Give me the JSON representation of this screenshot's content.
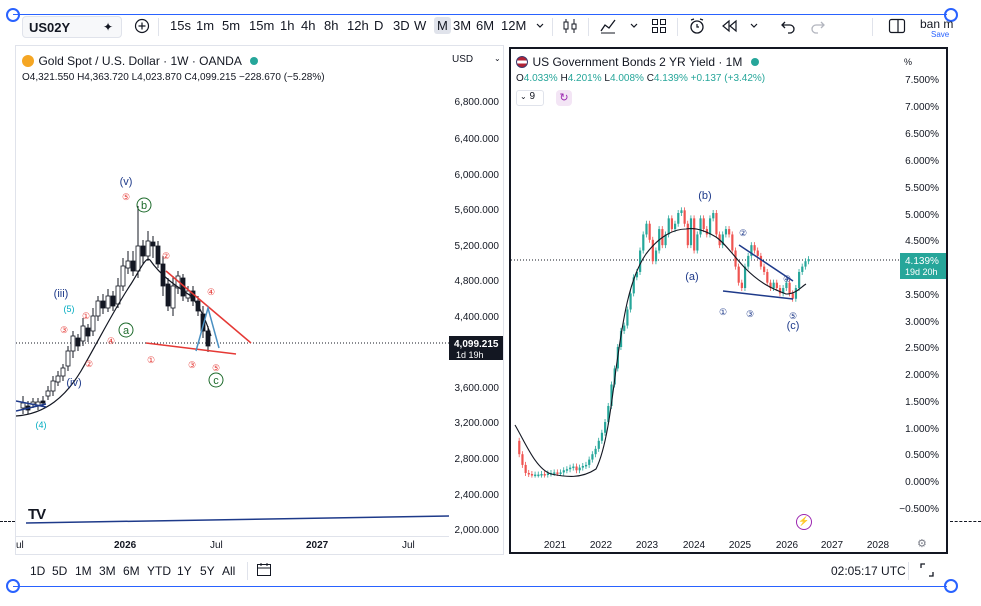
{
  "toolbar": {
    "symbol": "US02Y",
    "intervals": [
      "15s",
      "1m",
      "5m",
      "15m",
      "1h",
      "4h",
      "8h",
      "12h",
      "D",
      "3D",
      "W",
      "M",
      "3M",
      "6M",
      "12M"
    ],
    "active_interval": "M",
    "user": "ban m",
    "save": "Save",
    "icons": [
      "symbol-search-icon",
      "add-symbol-icon",
      "chevron-down-icon",
      "candle-type-icon",
      "indicators-icon",
      "chevron-down-icon",
      "layout-icon",
      "alert-icon",
      "replay-icon",
      "chevron-down-icon",
      "undo-icon",
      "redo-icon",
      "panel-toggle-icon"
    ]
  },
  "left_chart": {
    "title": "Gold Spot / U.S. Dollar · 1W · OANDA",
    "ohlc": {
      "o": "O",
      "o_val": "4,321.550",
      "h": "H",
      "h_val": "4,363.720",
      "l": "L",
      "l_val": "4,023.870",
      "c": "C",
      "c_val": "4,099.215",
      "chg": "−228.670 (−5.28%)"
    },
    "currency": "USD",
    "y_ticks": [
      "6,800.000",
      "6,400.000",
      "6,000.000",
      "5,600.000",
      "5,200.000",
      "4,800.000",
      "4,400.000",
      "3,600.000",
      "3,200.000",
      "2,800.000",
      "2,400.000",
      "2,000.000"
    ],
    "price_label": "4,099.215",
    "countdown": "1d 19h",
    "x_ticks": [
      "ul",
      "2026",
      "Jul",
      "2027",
      "Jul"
    ],
    "annotations": [
      "(v)",
      "⑤",
      "b",
      "(iii)",
      "(5)",
      "①",
      "③",
      "a",
      "④",
      "②",
      "(iv)",
      "(4)",
      "②",
      "④",
      "①",
      "③",
      "⑤",
      "c"
    ],
    "logo": "TV"
  },
  "right_chart": {
    "title": "US Government Bonds 2 YR Yield · 1M",
    "ohlc": {
      "o": "O",
      "o_val": "4.033%",
      "h": "H",
      "h_val": "4.201%",
      "l": "L",
      "l_val": "4.008%",
      "c": "C",
      "c_val": "4.139%",
      "chg": "+0.137 (+3.42%)"
    },
    "indicator_count": "9",
    "y_unit": "%",
    "y_ticks": [
      "7.500%",
      "7.000%",
      "6.500%",
      "6.000%",
      "5.500%",
      "5.000%",
      "4.500%",
      "3.500%",
      "3.000%",
      "2.500%",
      "2.000%",
      "1.500%",
      "1.000%",
      "0.500%",
      "0.000%",
      "−0.500%"
    ],
    "price_label": "4.139%",
    "countdown": "19d 20h",
    "x_ticks": [
      "2021",
      "2022",
      "2023",
      "2024",
      "2025",
      "2026",
      "2027",
      "2028"
    ],
    "annotations": [
      "(b)",
      "(a)",
      "②",
      "④",
      "①",
      "③",
      "⑤",
      "(c)"
    ]
  },
  "bottom_bar": {
    "ranges": [
      "1D",
      "5D",
      "1M",
      "3M",
      "6M",
      "YTD",
      "1Y",
      "5Y",
      "All"
    ],
    "time": "02:05:17 UTC"
  },
  "colors": {
    "up": "#26a69a",
    "down": "#ef5350",
    "accent": "#2962ff",
    "line": "#131722",
    "trend_red": "#e53935",
    "wave_blue": "#1e3a8a"
  }
}
